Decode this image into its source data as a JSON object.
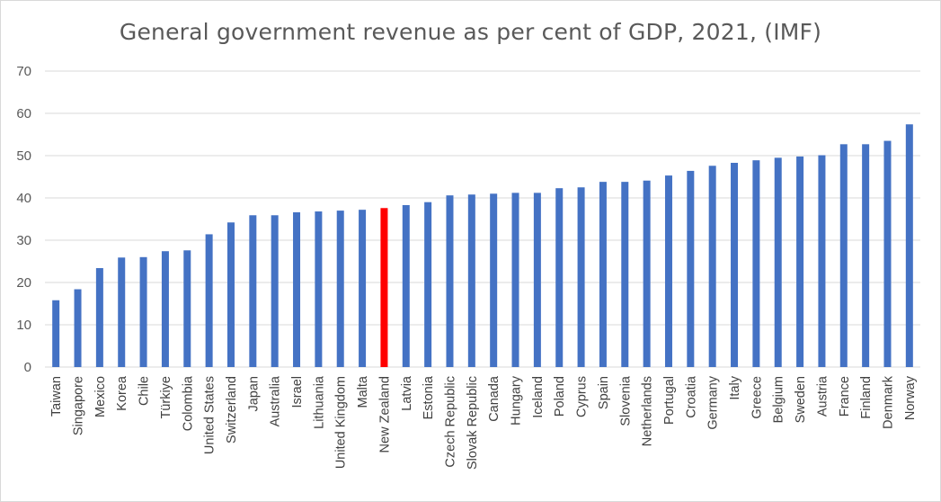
{
  "chart_data": {
    "type": "bar",
    "title": "General government revenue as per cent of GDP, 2021, (IMF)",
    "xlabel": "",
    "ylabel": "",
    "ylim": [
      0,
      70
    ],
    "yticks": [
      0,
      10,
      20,
      30,
      40,
      50,
      60,
      70
    ],
    "grid": true,
    "legend": "none",
    "bar_color": "#4472c4",
    "highlight_color": "#ff0000",
    "highlight_category": "New Zealand",
    "gridline_color": "#d9d9d9",
    "categories": [
      "Taiwan",
      "Singapore",
      "Mexico",
      "Korea",
      "Chile",
      "Türkiye",
      "Colombia",
      "United States",
      "Switzerland",
      "Japan",
      "Australia",
      "Israel",
      "Lithuania",
      "United Kingdom",
      "Malta",
      "New Zealand",
      "Latvia",
      "Estonia",
      "Czech Republic",
      "Slovak Republic",
      "Canada",
      "Hungary",
      "Iceland",
      "Poland",
      "Cyprus",
      "Spain",
      "Slovenia",
      "Netherlands",
      "Portugal",
      "Croatia",
      "Germany",
      "Italy",
      "Greece",
      "Belgium",
      "Sweden",
      "Austria",
      "France",
      "Finland",
      "Denmark",
      "Norway"
    ],
    "values": [
      15.8,
      18.4,
      23.4,
      25.9,
      26.0,
      27.4,
      27.6,
      31.4,
      34.2,
      35.9,
      35.9,
      36.6,
      36.8,
      37.0,
      37.2,
      37.6,
      38.3,
      39.0,
      40.6,
      40.8,
      41.0,
      41.2,
      41.2,
      42.3,
      42.5,
      43.8,
      43.8,
      44.1,
      45.3,
      46.4,
      47.6,
      48.3,
      48.9,
      49.5,
      49.8,
      50.1,
      52.7,
      52.7,
      53.5,
      57.4
    ]
  }
}
